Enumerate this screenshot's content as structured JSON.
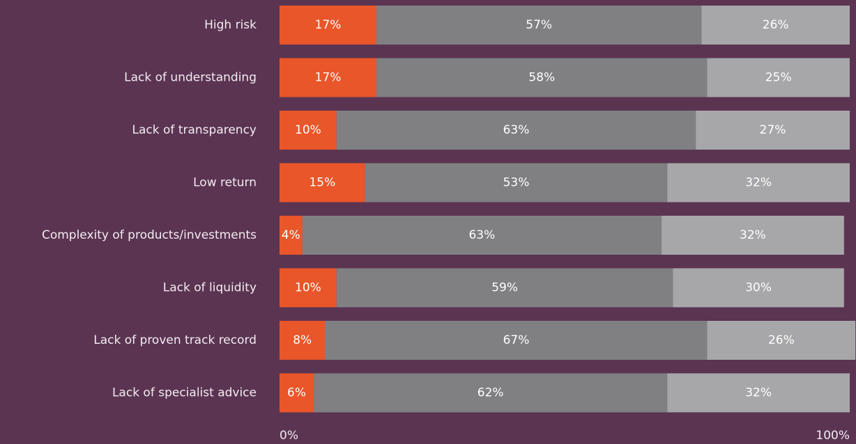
{
  "chart_data": {
    "type": "stacked-bar-horizontal",
    "categories": [
      "High risk",
      "Lack of understanding",
      "Lack of transparency",
      "Low return",
      "Complexity of products/investments",
      "Lack of liquidity",
      "Lack of proven track record",
      "Lack of specialist advice"
    ],
    "series": [
      {
        "color": "#e8562a",
        "values": [
          17,
          17,
          10,
          15,
          4,
          10,
          8,
          6
        ],
        "value_labels": [
          "17%",
          "17%",
          "10%",
          "15%",
          "4%",
          "10%",
          "8%",
          "6%"
        ]
      },
      {
        "color": "#808083",
        "values": [
          57,
          58,
          63,
          53,
          63,
          59,
          67,
          62
        ],
        "value_labels": [
          "57%",
          "58%",
          "63%",
          "53%",
          "63%",
          "59%",
          "67%",
          "62%"
        ]
      },
      {
        "color": "#a7a7a9",
        "values": [
          26,
          25,
          27,
          32,
          32,
          30,
          26,
          32
        ],
        "value_labels": [
          "26%",
          "25%",
          "27%",
          "32%",
          "32%",
          "30%",
          "26%",
          "32%"
        ]
      }
    ],
    "xlim": [
      0,
      100
    ],
    "xticks": [
      {
        "value": 0,
        "label": "0%"
      },
      {
        "value": 100,
        "label": "100%"
      }
    ]
  }
}
